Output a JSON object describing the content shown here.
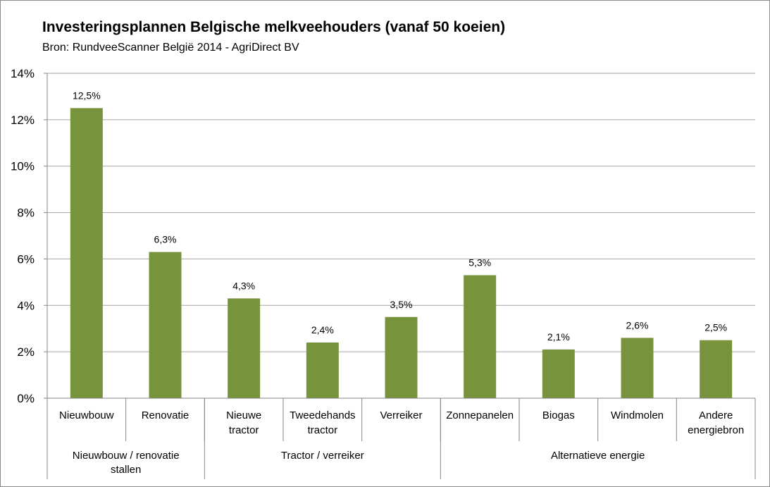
{
  "chart_data": {
    "type": "bar",
    "title": "Investeringsplannen Belgische melkveehouders (vanaf 50 koeien)",
    "subtitle": "Bron: RundveeScanner België 2014 - AgriDirect BV",
    "categories": [
      [
        "Nieuwbouw"
      ],
      [
        "Renovatie"
      ],
      [
        "Nieuwe",
        "tractor"
      ],
      [
        "Tweedehands",
        "tractor"
      ],
      [
        "Verreiker"
      ],
      [
        "Zonnepanelen"
      ],
      [
        "Biogas"
      ],
      [
        "Windmolen"
      ],
      [
        "Andere",
        "energiebron"
      ]
    ],
    "values": [
      12.5,
      6.3,
      4.3,
      2.4,
      3.5,
      5.3,
      2.1,
      2.6,
      2.5
    ],
    "data_labels": [
      "12,5%",
      "6,3%",
      "4,3%",
      "2,4%",
      "3,5%",
      "5,3%",
      "2,1%",
      "2,6%",
      "2,5%"
    ],
    "groups": [
      {
        "label": [
          "Nieuwbouw / renovatie",
          "stallen"
        ],
        "span": 2
      },
      {
        "label": [
          "Tractor / verreiker"
        ],
        "span": 3
      },
      {
        "label": [
          "Alternatieve energie"
        ],
        "span": 4
      }
    ],
    "ylim": [
      0,
      14
    ],
    "yticks": [
      0,
      2,
      4,
      6,
      8,
      10,
      12,
      14
    ],
    "ytick_labels": [
      "0%",
      "2%",
      "4%",
      "6%",
      "8%",
      "10%",
      "12%",
      "14%"
    ],
    "xlabel": "",
    "ylabel": "",
    "bar_color": "#77933c",
    "grid": true,
    "grid_color": "#a6a6a6",
    "legend": "none"
  }
}
